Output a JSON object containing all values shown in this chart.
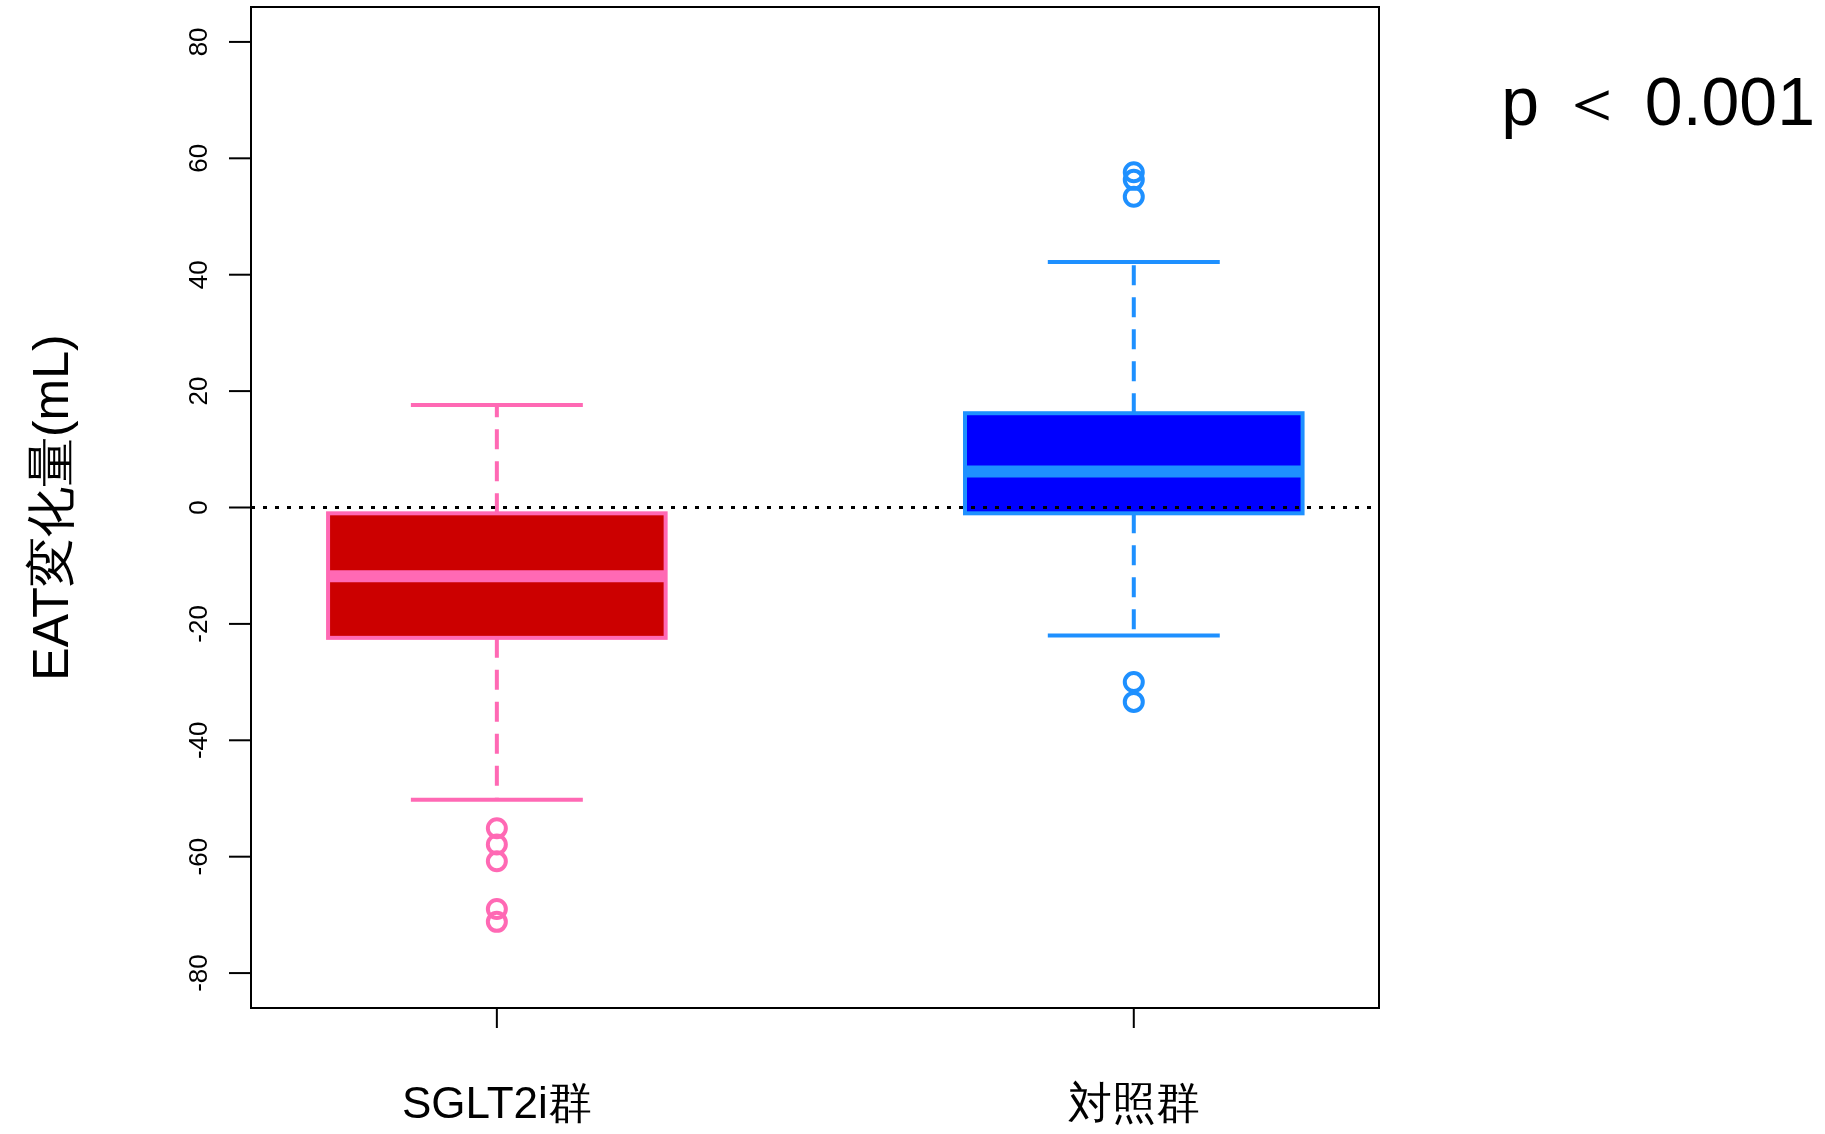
{
  "chart_data": {
    "type": "box",
    "ylabel": "EAT変化量(mL)",
    "categories": [
      "SGLT2i群",
      "対照群"
    ],
    "colors": [
      "#cc0000",
      "#0000ff"
    ],
    "series": [
      {
        "color": "#ff69b4",
        "boxes": [
          {
            "low": -50.2,
            "q1": -22.4,
            "median": -11.8,
            "q3": -1,
            "high": 17.6,
            "outliers": [
              -55.1,
              -57.9,
              -60.8,
              -69.0,
              -71.2
            ]
          },
          null
        ]
      },
      {
        "color": "#1e90ff",
        "boxes": [
          null,
          {
            "low": -22,
            "q1": -1,
            "median": 6.2,
            "q3": 16.2,
            "high": 42.2,
            "outliers": [
              57.6,
              56.3,
              53.4,
              -30.0,
              -33.4
            ]
          }
        ]
      }
    ],
    "ylim": [
      -86,
      86
    ],
    "yticks": [
      -80,
      -60,
      -40,
      -20,
      0,
      20,
      40,
      60,
      80
    ],
    "ref_lines": [
      {
        "axis": "y",
        "value": 0,
        "color": "#000000",
        "line_style": "dotted"
      }
    ],
    "annotations": [
      "p ＜ 0.001"
    ],
    "grid": false
  }
}
